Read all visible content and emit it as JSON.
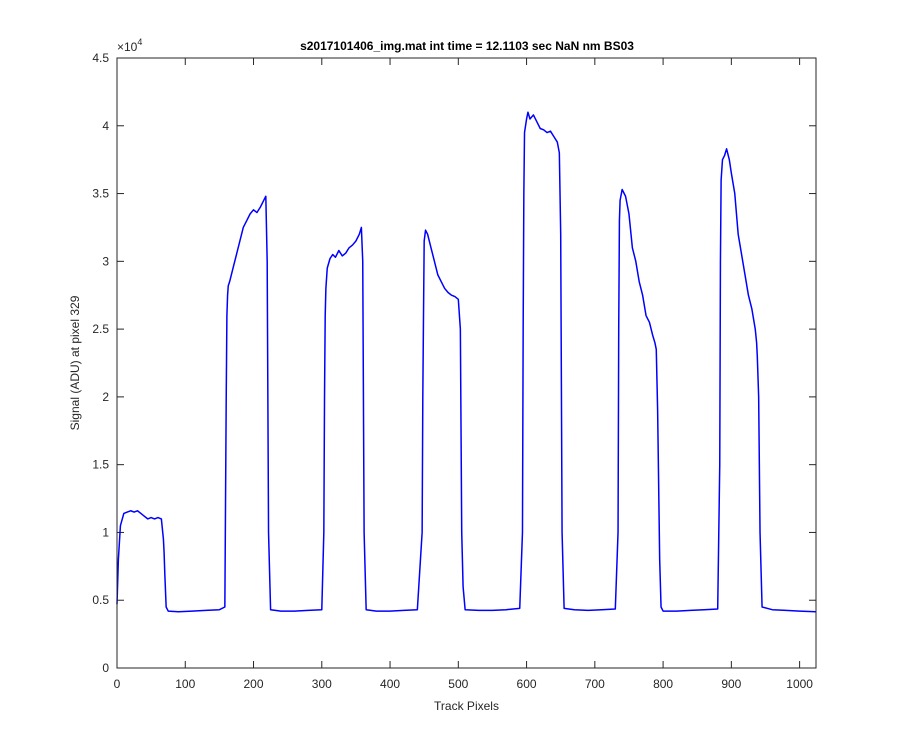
{
  "chart_data": {
    "type": "line",
    "title": "s2017101406_img.mat int time = 12.1103 sec  NaN nm BS03",
    "xlabel": "Track Pixels",
    "ylabel": "Signal (ADU) at pixel 329",
    "xlim": [
      0,
      1024
    ],
    "ylim": [
      0,
      45000
    ],
    "x_ticks": [
      0,
      100,
      200,
      300,
      400,
      500,
      600,
      700,
      800,
      900,
      1000
    ],
    "x_tick_labels": [
      "0",
      "100",
      "200",
      "300",
      "400",
      "500",
      "600",
      "700",
      "800",
      "900",
      "1000"
    ],
    "y_ticks": [
      0,
      5000,
      10000,
      15000,
      20000,
      25000,
      30000,
      35000,
      40000,
      45000
    ],
    "y_tick_labels": [
      "0",
      "0.5",
      "1",
      "1.5",
      "2",
      "2.5",
      "3",
      "3.5",
      "4",
      "4.5"
    ],
    "y_exponent_label": "×10",
    "y_exponent_power": "4",
    "grid": false,
    "legend": "none",
    "line_color": "#0000ff",
    "series": [
      {
        "x": [
          0,
          2,
          5,
          10,
          15,
          20,
          25,
          30,
          35,
          40,
          45,
          50,
          55,
          60,
          65,
          68,
          69,
          70,
          72,
          75,
          90,
          110,
          130,
          150,
          158,
          160,
          161,
          162,
          163,
          165,
          170,
          175,
          180,
          185,
          190,
          195,
          200,
          205,
          210,
          215,
          218,
          220,
          222,
          225,
          240,
          260,
          280,
          300,
          303,
          304,
          305,
          306,
          308,
          312,
          316,
          320,
          325,
          330,
          335,
          340,
          345,
          350,
          355,
          358,
          360,
          362,
          365,
          380,
          400,
          420,
          440,
          447,
          448,
          449,
          450,
          452,
          455,
          460,
          465,
          470,
          475,
          480,
          485,
          490,
          495,
          500,
          503,
          505,
          507,
          510,
          530,
          550,
          570,
          590,
          594,
          595,
          596,
          597,
          600,
          602,
          605,
          610,
          615,
          620,
          625,
          630,
          635,
          640,
          645,
          648,
          650,
          652,
          655,
          670,
          690,
          710,
          730,
          734,
          735,
          736,
          737,
          740,
          745,
          750,
          755,
          760,
          765,
          770,
          775,
          780,
          785,
          788,
          790,
          792,
          795,
          797,
          800,
          820,
          840,
          860,
          880,
          883,
          884,
          885,
          887,
          890,
          893,
          897,
          900,
          905,
          910,
          915,
          920,
          925,
          930,
          935,
          937,
          938,
          940,
          942,
          945,
          960,
          980,
          1000,
          1024
        ],
        "values": [
          4700,
          8000,
          10500,
          11400,
          11500,
          11600,
          11500,
          11600,
          11400,
          11200,
          11000,
          11100,
          11000,
          11100,
          11000,
          9500,
          8500,
          7000,
          4500,
          4200,
          4150,
          4200,
          4250,
          4300,
          4500,
          20000,
          26000,
          27500,
          28200,
          28500,
          29500,
          30500,
          31500,
          32500,
          33000,
          33500,
          33800,
          33600,
          34000,
          34500,
          34800,
          30000,
          10000,
          4300,
          4200,
          4200,
          4250,
          4300,
          10000,
          20000,
          26000,
          28000,
          29500,
          30200,
          30500,
          30300,
          30800,
          30400,
          30600,
          31000,
          31200,
          31500,
          32000,
          32500,
          30000,
          10000,
          4300,
          4200,
          4200,
          4250,
          4300,
          10000,
          20000,
          26000,
          31500,
          32300,
          32000,
          31000,
          30000,
          29000,
          28500,
          28000,
          27700,
          27500,
          27400,
          27200,
          25000,
          10000,
          6000,
          4300,
          4250,
          4250,
          4300,
          4400,
          10000,
          25000,
          35000,
          39500,
          40500,
          41000,
          40500,
          40800,
          40300,
          39800,
          39700,
          39500,
          39600,
          39200,
          38800,
          38000,
          32000,
          10000,
          4400,
          4300,
          4250,
          4300,
          4350,
          10000,
          25000,
          33000,
          34500,
          35300,
          34800,
          33500,
          31000,
          30000,
          28500,
          27500,
          26000,
          25500,
          24500,
          24000,
          23500,
          19000,
          8000,
          4500,
          4200,
          4200,
          4250,
          4300,
          4350,
          15000,
          30000,
          36000,
          37500,
          37800,
          38300,
          37500,
          36500,
          35000,
          32000,
          30500,
          29000,
          27500,
          26500,
          25000,
          24000,
          23000,
          20000,
          10000,
          4500,
          4300,
          4250,
          4200,
          4150
        ]
      }
    ]
  }
}
